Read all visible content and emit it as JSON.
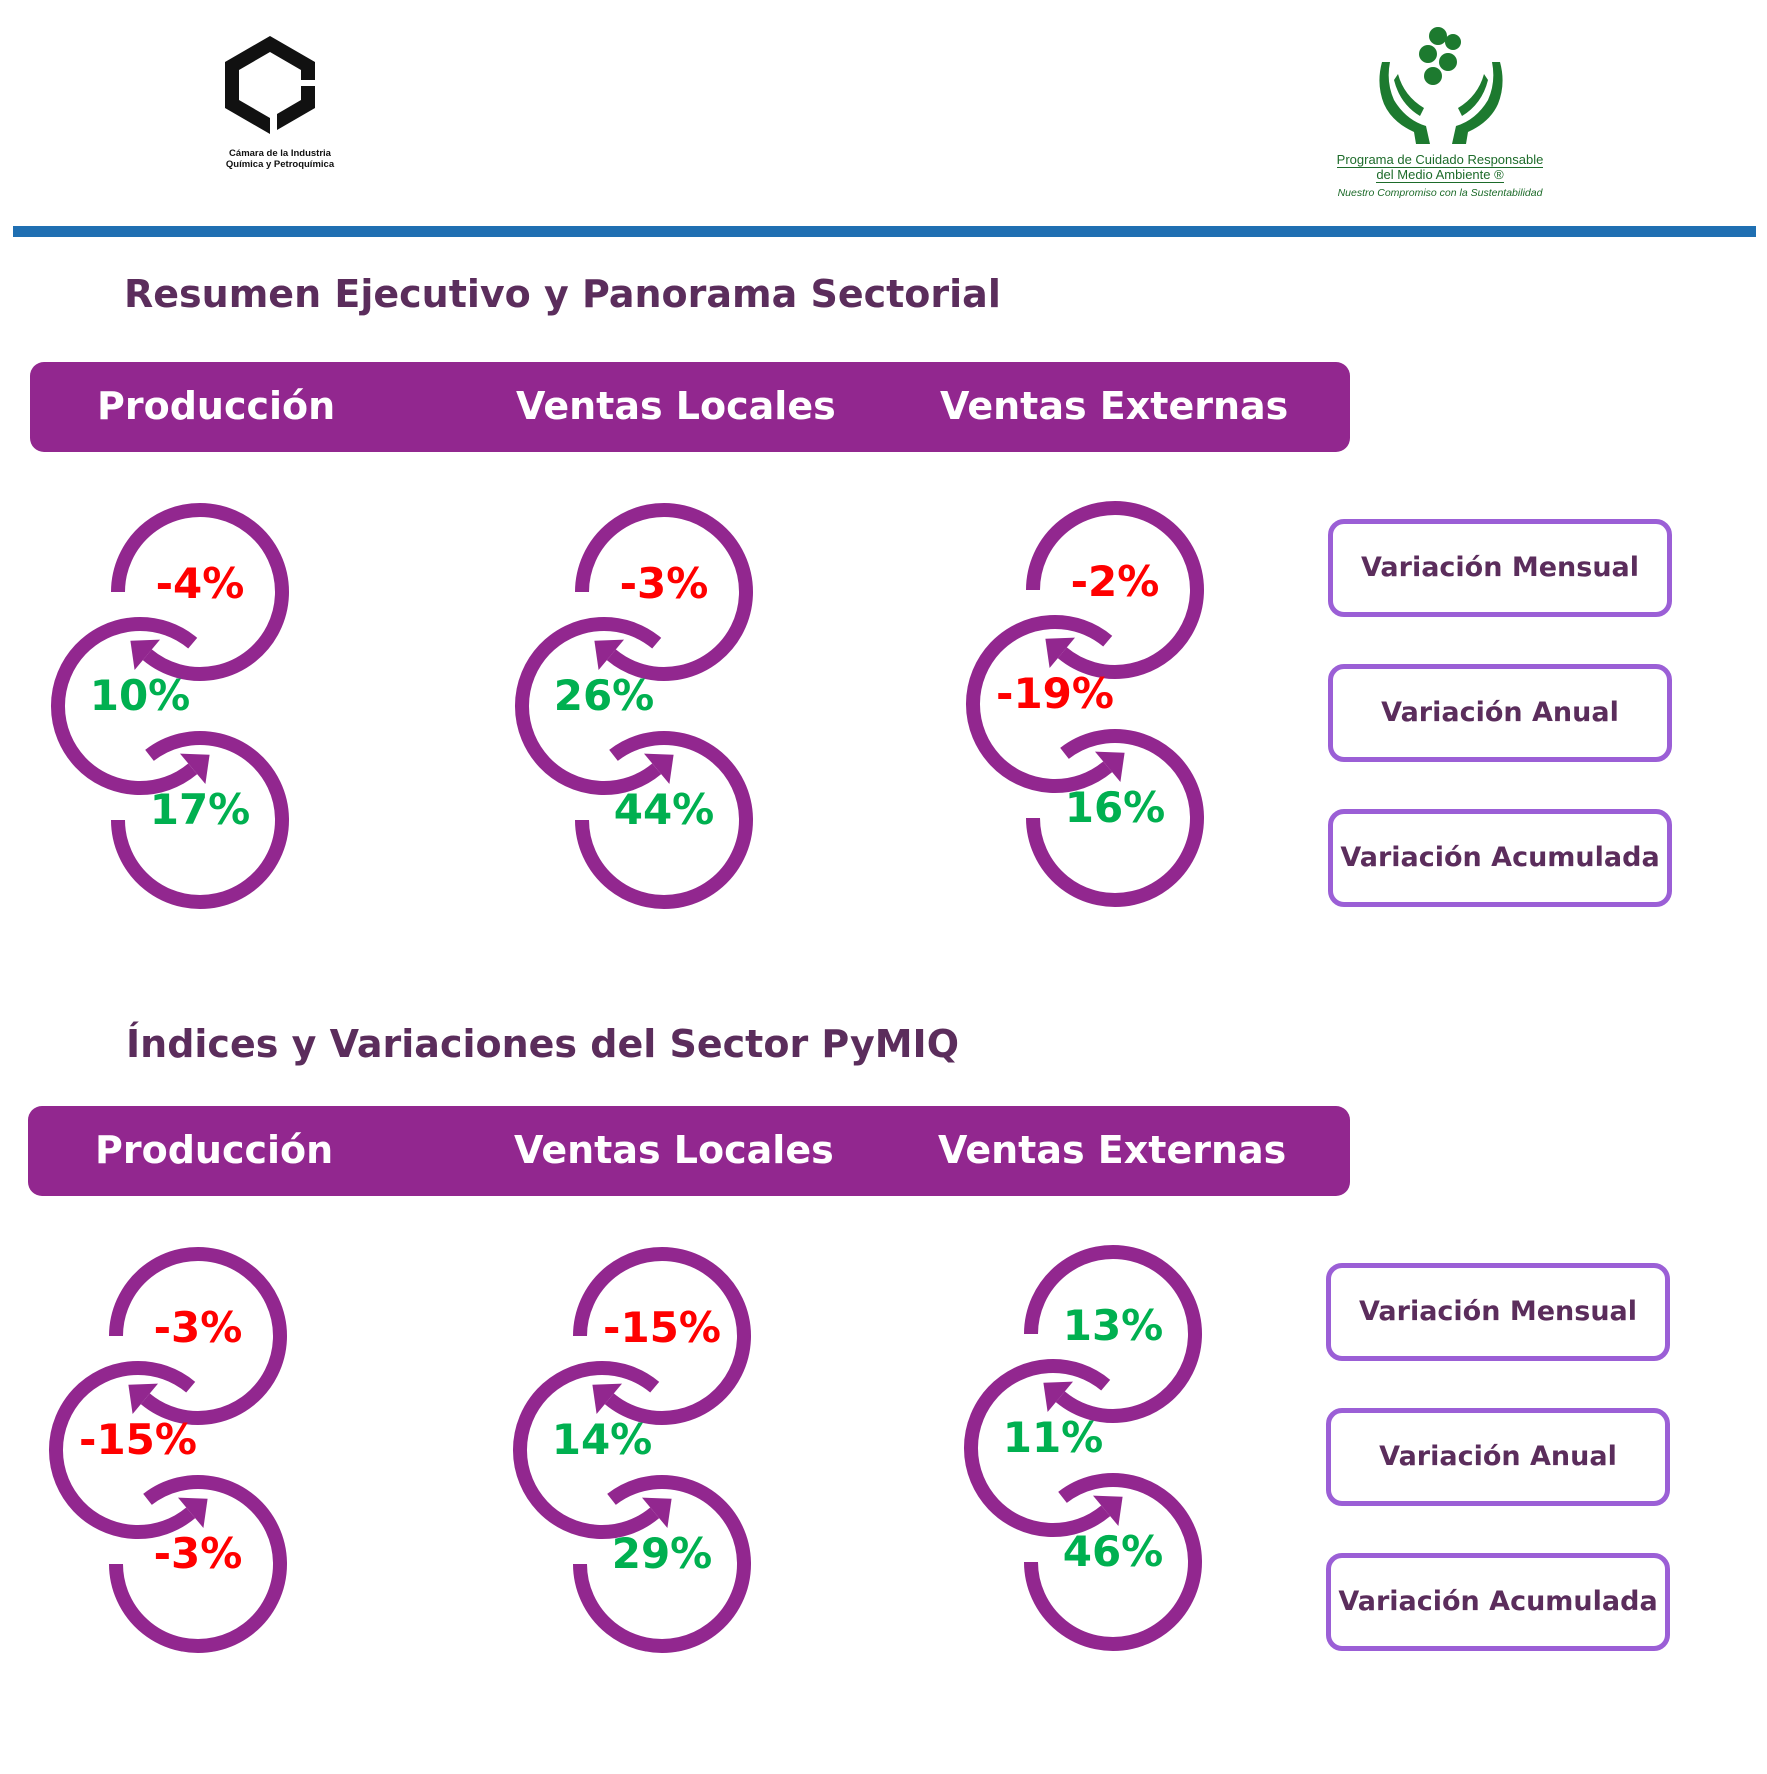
{
  "colors": {
    "brand_purple": "#92278f",
    "title_color": "#5b2d5c",
    "negative": "#ff0000",
    "positive": "#00b050",
    "rule_blue": "#1f6fb2",
    "legend_border": "#9b5fd6"
  },
  "logos": {
    "left": {
      "caption_line1": "Cámara de la Industria",
      "caption_line2": "Química y Petroquímica"
    },
    "right": {
      "caption_line1": "Programa de Cuidado Responsable",
      "caption_line2": "del Medio Ambiente ®",
      "tagline": "Nuestro Compromiso con la Sustentabilidad"
    }
  },
  "sections": [
    {
      "title": "Resumen Ejecutivo y Panorama Sectorial",
      "headers": [
        "Producción",
        "Ventas Locales",
        "Ventas Externas"
      ],
      "groups": [
        {
          "mensual": "-4%",
          "anual": "10%",
          "acumulada": "17%"
        },
        {
          "mensual": "-3%",
          "anual": "26%",
          "acumulada": "44%"
        },
        {
          "mensual": "-2%",
          "anual": "-19%",
          "acumulada": "16%"
        }
      ]
    },
    {
      "title": "Índices y Variaciones del Sector PyMIQ",
      "headers": [
        "Producción",
        "Ventas Locales",
        "Ventas Externas"
      ],
      "groups": [
        {
          "mensual": "-3%",
          "anual": "-15%",
          "acumulada": "-3%"
        },
        {
          "mensual": "-15%",
          "anual": "14%",
          "acumulada": "29%"
        },
        {
          "mensual": "13%",
          "anual": "11%",
          "acumulada": "46%"
        }
      ]
    }
  ],
  "legend": [
    "Variación Mensual",
    "Variación Anual",
    "Variación Acumulada"
  ]
}
